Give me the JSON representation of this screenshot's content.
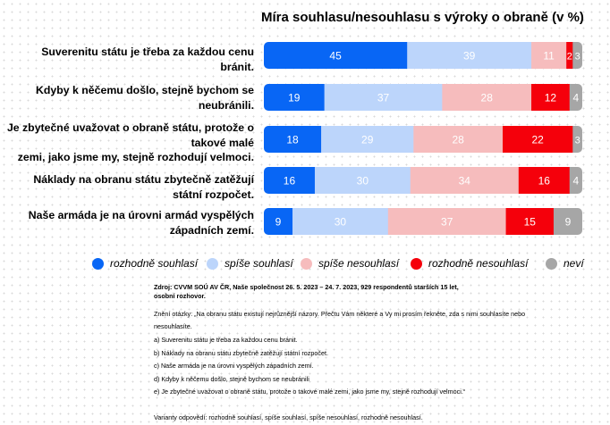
{
  "chart_data": {
    "type": "bar",
    "orientation": "horizontal",
    "stacked": true,
    "title": "Míra souhlasu/nesouhlasu s výroky o obraně (v %)",
    "categories": [
      [
        "Suverenitu státu je třeba za každou cenu",
        "bránit."
      ],
      [
        "Kdyby k něčemu došlo, stejně bychom se",
        "neubránili."
      ],
      [
        "Je zbytečné uvažovat o obraně státu, protože o",
        "takové malé",
        "zemi, jako jsme my, stejně rozhodují velmoci."
      ],
      [
        "Náklady na obranu státu zbytečně zatěžují",
        "státní rozpočet."
      ],
      [
        "Naše armáda je na úrovni armád vyspělých",
        "západních zemí."
      ]
    ],
    "series": [
      {
        "name": "rozhodně souhlasí",
        "color": "#0866f5",
        "text_color": "#ffffff",
        "values": [
          45,
          19,
          18,
          16,
          9
        ]
      },
      {
        "name": "spíše souhlasí",
        "color": "#bcd5fb",
        "text_color": "#ffffff",
        "values": [
          39,
          37,
          29,
          30,
          30
        ]
      },
      {
        "name": "spíše nesouhlasí",
        "color": "#f6bcbd",
        "text_color": "#ffffff",
        "values": [
          11,
          28,
          28,
          34,
          37
        ]
      },
      {
        "name": "rozhodně nesouhlasí",
        "color": "#f5000b",
        "text_color": "#ffffff",
        "values": [
          2,
          12,
          22,
          16,
          15
        ]
      },
      {
        "name": "neví",
        "color": "#a6a6a6",
        "text_color": "#ffffff",
        "values": [
          3,
          4,
          3,
          4,
          9
        ]
      }
    ],
    "xlim": [
      0,
      100
    ],
    "legend_position": "bottom"
  },
  "notes": {
    "source": "Zdroj: CVVM SOÚ AV ČR, Naše společnost 26. 5. 2023 – 24. 7. 2023, 929 respondentů starších 15 let, osobní rozhovor.",
    "question_lines": [
      "Znění otázky: „Na obranu státu existují nejrůznější názory. Přečtu Vám některé a Vy mi prosím řekněte, zda s nimi souhlasíte nebo",
      "nesouhlasíte.",
      "a) Suverenitu státu je třeba za každou cenu bránit.",
      "b) Náklady na obranu státu zbytečně zatěžují státní rozpočet.",
      "c) Naše armáda je na úrovni vyspělých západních zemí.",
      "d) Kdyby k něčemu došlo, stejně bychom se neubránili",
      "e) Je zbytečné uvažovat o obraně státu, protože o takové malé zemi, jako jsme my, stejně rozhodují velmoci.“"
    ],
    "variants": "Varianty odpovědí: rozhodně souhlasí, spíše souhlasí, spíše nesouhlasí, rozhodně nesouhlasí."
  }
}
